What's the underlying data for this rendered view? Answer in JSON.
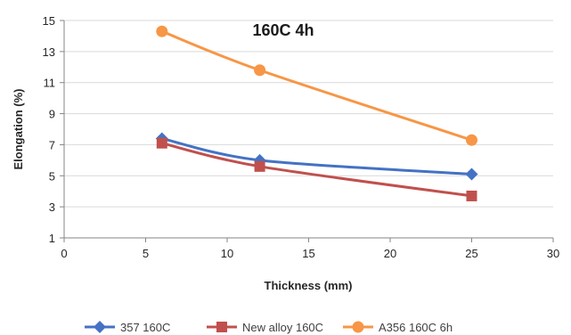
{
  "chart_data": {
    "type": "line",
    "title": "160C 4h",
    "xlabel": "Thickness (mm)",
    "ylabel": "Elongation (%)",
    "xlim": [
      0,
      30
    ],
    "ylim": [
      1,
      15
    ],
    "x_ticks": [
      "0",
      "5",
      "10",
      "15",
      "20",
      "25",
      "30"
    ],
    "y_ticks": [
      "1",
      "3",
      "5",
      "7",
      "9",
      "11",
      "13",
      "15"
    ],
    "grid": "horizontal",
    "legend": "bottom",
    "series": [
      {
        "name": "357 160C",
        "color": "#4472c4",
        "marker": "diamond",
        "x": [
          6,
          12,
          25
        ],
        "y": [
          7.4,
          6.0,
          5.1
        ]
      },
      {
        "name": "New alloy 160C",
        "color": "#c0504d",
        "marker": "square",
        "x": [
          6,
          12,
          25
        ],
        "y": [
          7.1,
          5.6,
          3.7
        ]
      },
      {
        "name": "A356 160C 6h",
        "color": "#f79646",
        "marker": "circle",
        "x": [
          6,
          12,
          25
        ],
        "y": [
          14.3,
          11.8,
          7.3
        ]
      }
    ]
  }
}
